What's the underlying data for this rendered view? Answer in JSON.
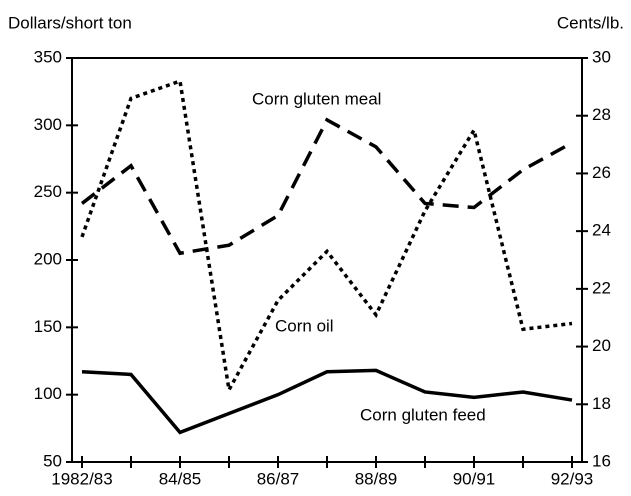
{
  "chart_data": {
    "type": "line",
    "y_label": "Dollars/short ton",
    "y2_label": "Cents/lb.",
    "categories": [
      "1982/83",
      null,
      "84/85",
      null,
      "86/87",
      null,
      "88/89",
      null,
      "90/91",
      null,
      "92/93"
    ],
    "ylim": [
      50,
      350
    ],
    "yticks": [
      50,
      100,
      150,
      200,
      250,
      300,
      350
    ],
    "y2lim": [
      16,
      30
    ],
    "y2ticks": [
      16,
      18,
      20,
      22,
      24,
      26,
      28,
      30
    ],
    "series": [
      {
        "name": "Corn gluten meal",
        "color": "#000000",
        "style": "dashed",
        "axis": "y",
        "values": [
          242,
          270,
          205,
          211,
          233,
          304,
          284,
          242,
          239,
          267,
          287
        ]
      },
      {
        "name": "Corn oil",
        "color": "#000000",
        "style": "dotted",
        "axis": "y2",
        "values": [
          23.8,
          28.6,
          29.2,
          18.5,
          21.6,
          23.3,
          21.1,
          24.7,
          27.5,
          20.6,
          20.8
        ]
      },
      {
        "name": "Corn gluten feed",
        "color": "#000000",
        "style": "solid",
        "axis": "y",
        "values": [
          117,
          115,
          72,
          86,
          100,
          117,
          118,
          102,
          98,
          102,
          96
        ]
      }
    ]
  }
}
